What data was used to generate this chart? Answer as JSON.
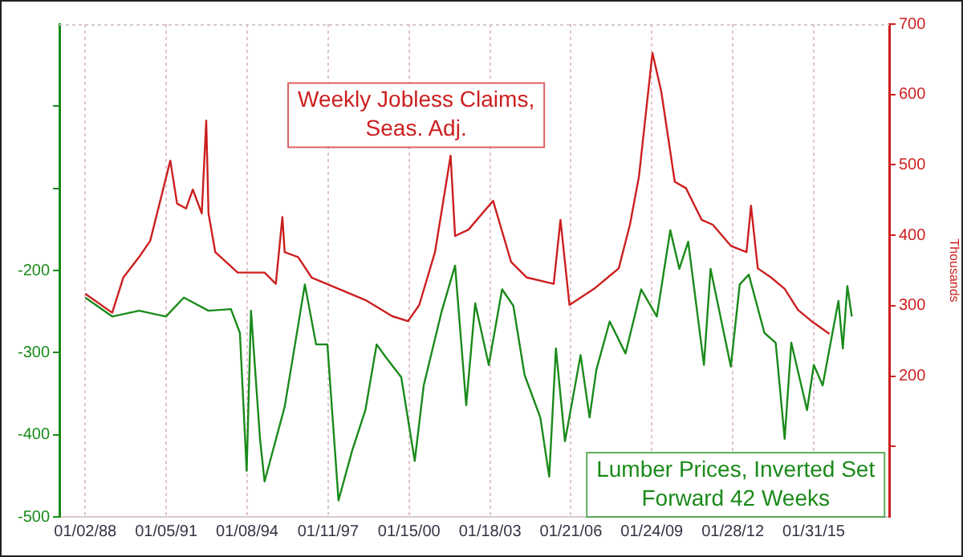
{
  "chart_data": {
    "type": "line",
    "y2label": "Thousands",
    "xlim": [
      "1987-01-15",
      "2017-11-20"
    ],
    "xticks": [
      {
        "value": "1988-01-02",
        "label": "01/02/88"
      },
      {
        "value": "1991-01-05",
        "label": "01/05/91"
      },
      {
        "value": "1994-01-08",
        "label": "01/08/94"
      },
      {
        "value": "1997-01-11",
        "label": "01/11/97"
      },
      {
        "value": "2000-01-15",
        "label": "01/15/00"
      },
      {
        "value": "2003-01-18",
        "label": "01/18/03"
      },
      {
        "value": "2006-01-21",
        "label": "01/21/06"
      },
      {
        "value": "2009-01-24",
        "label": "01/24/09"
      },
      {
        "value": "2012-01-28",
        "label": "01/28/12"
      },
      {
        "value": "2015-01-31",
        "label": "01/31/15"
      }
    ],
    "ylim": [
      -500,
      100
    ],
    "yticks": [
      -500,
      -400,
      -300,
      -200,
      {
        "value": -100,
        "label": null
      },
      {
        "value": 0,
        "label": null
      }
    ],
    "y2lim": [
      0,
      700
    ],
    "y2ticks": [
      {
        "value": 100,
        "label": null
      },
      200,
      300,
      400,
      500,
      600,
      700
    ],
    "grid": "x",
    "marker": "none",
    "line_style": "solid",
    "series": [
      {
        "name": "Weekly Jobless Claims, Seas. Adj.",
        "color": "#cc1f1f",
        "axis": "y2",
        "x": [
          "1988-01",
          "1989-01",
          "1989-06",
          "1990-01",
          "1990-06",
          "1991-03",
          "1991-06",
          "1991-10",
          "1992-01",
          "1992-05",
          "1992-07",
          "1992-08",
          "1992-11",
          "1993-09",
          "1994-09",
          "1995-02",
          "1995-05",
          "1995-06",
          "1995-12",
          "1996-06",
          "1997-06",
          "1998-06",
          "1999-06",
          "2000-01",
          "2000-06",
          "2001-01",
          "2001-08",
          "2001-10",
          "2002-04",
          "2003-03",
          "2003-11",
          "2004-06",
          "2005-06",
          "2005-09",
          "2006-01",
          "2006-12",
          "2007-11",
          "2008-04",
          "2008-08",
          "2009-02",
          "2009-06",
          "2009-12",
          "2010-05",
          "2010-12",
          "2011-05",
          "2012-01",
          "2012-08",
          "2012-10",
          "2013-01",
          "2013-07",
          "2014-01",
          "2014-07",
          "2015-01",
          "2015-09"
        ],
        "values": [
          317,
          290,
          340,
          369,
          392,
          506,
          445,
          438,
          465,
          431,
          563,
          431,
          376,
          347,
          347,
          331,
          426,
          376,
          369,
          340,
          324,
          308,
          285,
          278,
          301,
          376,
          513,
          399,
          408,
          449,
          362,
          340,
          331,
          422,
          301,
          324,
          353,
          415,
          483,
          659,
          604,
          476,
          467,
          422,
          415,
          385,
          376,
          442,
          353,
          340,
          324,
          294,
          278,
          260
        ]
      },
      {
        "name": "Lumber Prices, Inverted Set Forward 42 Weeks",
        "color": "#1a8a1a",
        "axis": "y",
        "x": [
          "1988-01",
          "1989-01",
          "1990-01",
          "1991-01",
          "1991-09",
          "1992-08",
          "1993-06",
          "1993-10",
          "1994-01",
          "1994-03",
          "1994-07",
          "1994-09",
          "1995-06",
          "1995-10",
          "1996-03",
          "1996-08",
          "1997-01",
          "1997-06",
          "1997-12",
          "1998-06",
          "1998-11",
          "1999-03",
          "1999-10",
          "2000-04",
          "2000-08",
          "2001-04",
          "2001-10",
          "2002-03",
          "2002-07",
          "2003-01",
          "2003-07",
          "2003-12",
          "2004-05",
          "2004-12",
          "2005-04",
          "2005-07",
          "2005-11",
          "2006-06",
          "2006-10",
          "2007-01",
          "2007-07",
          "2008-02",
          "2008-09",
          "2009-04",
          "2009-10",
          "2010-02",
          "2010-06",
          "2011-01",
          "2011-04",
          "2012-01",
          "2012-05",
          "2012-09",
          "2013-04",
          "2013-09",
          "2014-01",
          "2014-04",
          "2014-11",
          "2015-02",
          "2015-06",
          "2016-01",
          "2016-03",
          "2016-05",
          "2016-07"
        ],
        "values": [
          -233,
          -256,
          -249,
          -256,
          -233,
          -249,
          -247,
          -276,
          -444,
          -249,
          -405,
          -457,
          -366,
          -300,
          -217,
          -290,
          -290,
          -480,
          -420,
          -370,
          -290,
          -305,
          -330,
          -432,
          -340,
          -250,
          -194,
          -364,
          -240,
          -315,
          -223,
          -243,
          -327,
          -379,
          -451,
          -295,
          -408,
          -303,
          -379,
          -321,
          -262,
          -301,
          -223,
          -256,
          -151,
          -198,
          -165,
          -315,
          -198,
          -317,
          -217,
          -205,
          -276,
          -288,
          -405,
          -288,
          -370,
          -315,
          -340,
          -237,
          -295,
          -219,
          -256
        ]
      }
    ]
  }
}
